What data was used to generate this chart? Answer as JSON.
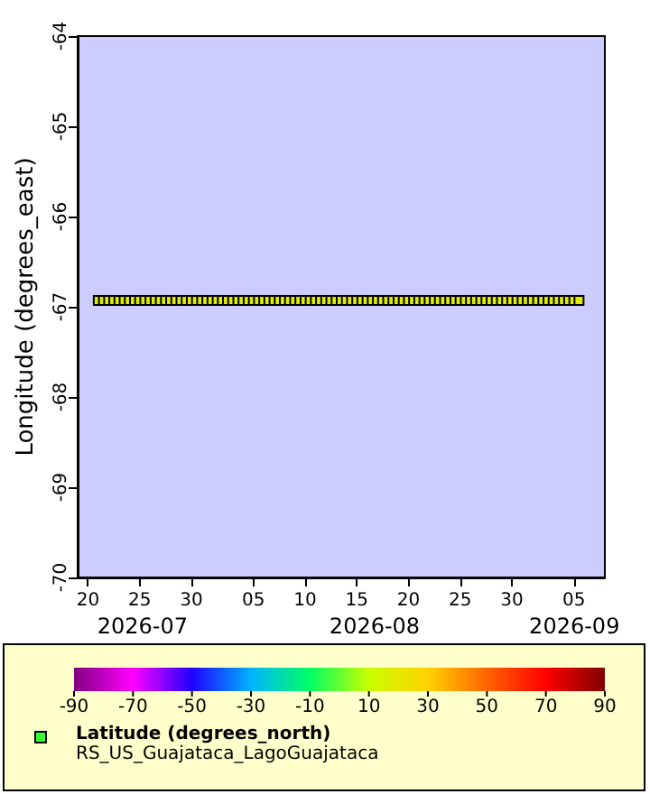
{
  "chart_data": {
    "type": "scatter",
    "ylabel": "Longitude (degrees_east)",
    "subtitle": "RS_US_Guajataca_LagoGuajataca",
    "clabel": "Latitude (degrees_north)",
    "annotations": [
      "2026-07",
      "2026-08",
      "2026-09"
    ],
    "x": [
      "2026-07-21T00:00",
      "2026-07-21T12:00",
      "2026-07-22T00:00",
      "2026-07-22T12:00",
      "2026-07-23T00:00",
      "2026-07-23T12:00",
      "2026-07-24T00:00",
      "2026-07-24T12:00",
      "2026-07-25T00:00",
      "2026-07-25T12:00",
      "2026-07-26T00:00",
      "2026-07-26T12:00",
      "2026-07-27T00:00",
      "2026-07-27T12:00",
      "2026-07-28T00:00",
      "2026-07-28T12:00",
      "2026-07-29T00:00",
      "2026-07-29T12:00",
      "2026-07-30T00:00",
      "2026-07-30T12:00",
      "2026-07-31T00:00",
      "2026-07-31T12:00",
      "2026-08-01T00:00",
      "2026-08-01T12:00",
      "2026-08-02T00:00",
      "2026-08-02T12:00",
      "2026-08-03T00:00",
      "2026-08-03T12:00",
      "2026-08-04T00:00",
      "2026-08-04T12:00",
      "2026-08-05T00:00",
      "2026-08-05T12:00",
      "2026-08-06T00:00",
      "2026-08-06T12:00",
      "2026-08-07T00:00",
      "2026-08-07T12:00",
      "2026-08-08T00:00",
      "2026-08-08T12:00",
      "2026-08-09T00:00",
      "2026-08-09T12:00",
      "2026-08-10T00:00",
      "2026-08-10T12:00",
      "2026-08-11T00:00",
      "2026-08-11T12:00",
      "2026-08-12T00:00",
      "2026-08-12T12:00",
      "2026-08-13T00:00",
      "2026-08-13T12:00",
      "2026-08-14T00:00",
      "2026-08-14T12:00",
      "2026-08-15T00:00",
      "2026-08-15T12:00",
      "2026-08-16T00:00",
      "2026-08-16T12:00",
      "2026-08-17T00:00",
      "2026-08-17T12:00",
      "2026-08-18T00:00",
      "2026-08-18T12:00",
      "2026-08-19T00:00",
      "2026-08-19T12:00",
      "2026-08-20T00:00",
      "2026-08-20T12:00",
      "2026-08-21T00:00",
      "2026-08-21T12:00",
      "2026-08-22T00:00",
      "2026-08-22T12:00",
      "2026-08-23T00:00",
      "2026-08-23T12:00",
      "2026-08-24T00:00",
      "2026-08-24T12:00",
      "2026-08-25T00:00",
      "2026-08-25T12:00",
      "2026-08-26T00:00",
      "2026-08-26T12:00",
      "2026-08-27T00:00",
      "2026-08-27T12:00",
      "2026-08-28T00:00",
      "2026-08-28T12:00",
      "2026-08-29T00:00",
      "2026-08-29T12:00",
      "2026-08-30T00:00",
      "2026-08-30T12:00",
      "2026-08-31T00:00",
      "2026-08-31T12:00",
      "2026-09-01T00:00",
      "2026-09-01T12:00",
      "2026-09-02T00:00",
      "2026-09-02T12:00",
      "2026-09-03T00:00",
      "2026-09-03T12:00",
      "2026-09-04T00:00",
      "2026-09-04T12:00",
      "2026-09-05T00:00",
      "2026-09-05T12:00"
    ],
    "values": [
      -66.93,
      -66.93,
      -66.93,
      -66.93,
      -66.93,
      -66.93,
      -66.93,
      -66.93,
      -66.93,
      -66.93,
      -66.93,
      -66.93,
      -66.93,
      -66.93,
      -66.93,
      -66.93,
      -66.93,
      -66.93,
      -66.93,
      -66.93,
      -66.93,
      -66.93,
      -66.93,
      -66.93,
      -66.93,
      -66.93,
      -66.93,
      -66.93,
      -66.93,
      -66.93,
      -66.93,
      -66.93,
      -66.93,
      -66.93,
      -66.93,
      -66.93,
      -66.93,
      -66.93,
      -66.93,
      -66.93,
      -66.93,
      -66.93,
      -66.93,
      -66.93,
      -66.93,
      -66.93,
      -66.93,
      -66.93,
      -66.93,
      -66.93,
      -66.93,
      -66.93,
      -66.93,
      -66.93,
      -66.93,
      -66.93,
      -66.93,
      -66.93,
      -66.93,
      -66.93,
      -66.93,
      -66.93,
      -66.93,
      -66.93,
      -66.93,
      -66.93,
      -66.93,
      -66.93,
      -66.93,
      -66.93,
      -66.93,
      -66.93,
      -66.93,
      -66.93,
      -66.93,
      -66.93,
      -66.93,
      -66.93,
      -66.93,
      -66.93,
      -66.93,
      -66.93,
      -66.93,
      -66.93,
      -66.93,
      -66.93,
      -66.93,
      -66.93,
      -66.93,
      -66.93,
      -66.93,
      -66.93,
      -66.93,
      -66.93
    ],
    "cvalues": [
      18.4,
      18.4,
      18.4,
      18.4,
      18.4,
      18.4,
      18.4,
      18.4,
      18.4,
      18.4,
      18.4,
      18.4,
      18.4,
      18.4,
      18.4,
      18.4,
      18.4,
      18.4,
      18.4,
      18.4,
      18.4,
      18.4,
      18.4,
      18.4,
      18.4,
      18.4,
      18.4,
      18.4,
      18.4,
      18.4,
      18.4,
      18.4,
      18.4,
      18.4,
      18.4,
      18.4,
      18.4,
      18.4,
      18.4,
      18.4,
      18.4,
      18.4,
      18.4,
      18.4,
      18.4,
      18.4,
      18.4,
      18.4,
      18.4,
      18.4,
      18.4,
      18.4,
      18.4,
      18.4,
      18.4,
      18.4,
      18.4,
      18.4,
      18.4,
      18.4,
      18.4,
      18.4,
      18.4,
      18.4,
      18.4,
      18.4,
      18.4,
      18.4,
      18.4,
      18.4,
      18.4,
      18.4,
      18.4,
      18.4,
      18.4,
      18.4,
      18.4,
      18.4,
      18.4,
      18.4,
      18.4,
      18.4,
      18.4,
      18.4,
      18.4,
      18.4,
      18.4,
      18.4,
      18.4,
      18.4,
      18.4,
      18.4,
      18.4,
      18.4
    ],
    "xlim": [
      "2026-07-19",
      "2026-09-08"
    ],
    "xticks": [
      {
        "value": "2026-07-20",
        "label": "20"
      },
      {
        "value": "2026-07-25",
        "label": "25"
      },
      {
        "value": "2026-07-30",
        "label": "30"
      },
      {
        "value": "2026-08-05",
        "label": "05"
      },
      {
        "value": "2026-08-10",
        "label": "10"
      },
      {
        "value": "2026-08-15",
        "label": "15"
      },
      {
        "value": "2026-08-20",
        "label": "20"
      },
      {
        "value": "2026-08-25",
        "label": "25"
      },
      {
        "value": "2026-08-30",
        "label": "30"
      },
      {
        "value": "2026-09-05",
        "label": "05"
      }
    ],
    "ylim": [
      -70,
      -64
    ],
    "yticks": [
      -70,
      -69,
      -68,
      -67,
      -66,
      -65,
      -64
    ],
    "clim": [
      -90,
      90
    ],
    "cticks": [
      -90,
      -70,
      -50,
      -30,
      -10,
      10,
      30,
      50,
      70,
      90
    ],
    "marker": "square",
    "grid": false
  }
}
